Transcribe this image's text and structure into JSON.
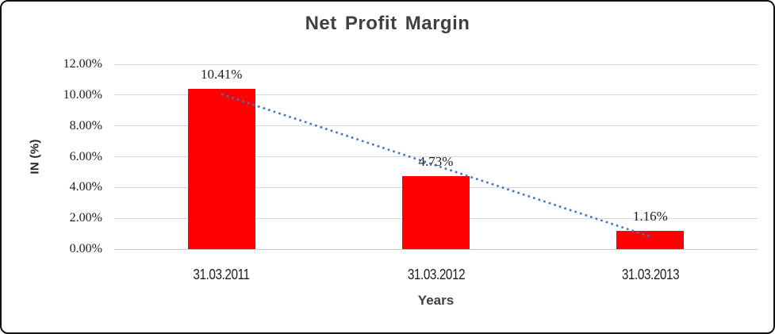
{
  "chart": {
    "title": "Net Profit Margin",
    "y_axis_title": "IN (%)",
    "x_axis_title": "Years"
  },
  "colors": {
    "bar": "#FF0000",
    "trendline": "#4472C4",
    "gridline": "#D9D9D9",
    "axis_line": "#C6C6C6",
    "title_text": "#404040",
    "tick_text": "#1F1F1F",
    "frame_border": "#111111"
  },
  "chart_data": {
    "type": "bar",
    "title": "Net Profit Margin",
    "xlabel": "Years",
    "ylabel": "IN (%)",
    "categories": [
      "31.03.2011",
      "31.03.2012",
      "31.03.2013"
    ],
    "values": [
      10.41,
      4.73,
      1.16
    ],
    "data_labels": [
      "10.41%",
      "4.73%",
      "1.16%"
    ],
    "bar_color": "#FF0000",
    "ylim": [
      0,
      12
    ],
    "ytick_values": [
      0,
      2,
      4,
      6,
      8,
      10,
      12
    ],
    "ytick_labels": [
      "0.00%",
      "2.00%",
      "4.00%",
      "6.00%",
      "8.00%",
      "10.00%",
      "12.00%"
    ],
    "grid": true,
    "legend": false,
    "trendline": {
      "type": "linear",
      "style": "dotted",
      "color": "#4472C4",
      "fit_endpoint_values": [
        10.058,
        0.808
      ]
    }
  }
}
